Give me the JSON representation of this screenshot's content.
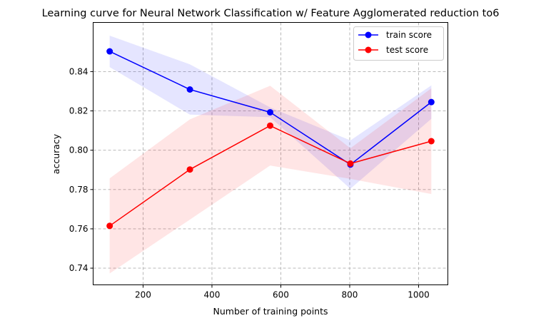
{
  "chart_data": {
    "type": "line",
    "title": "Learning curve for Neural Network Classification w/ Feature Agglomerated reduction to6",
    "xlabel": "Number of training points",
    "ylabel": "accuracy",
    "xlim": [
      55,
      1085
    ],
    "ylim": [
      0.7315,
      0.865
    ],
    "xticks": [
      200,
      400,
      600,
      800,
      1000
    ],
    "yticks": [
      0.74,
      0.76,
      0.78,
      0.8,
      0.82,
      0.84
    ],
    "ytick_labels": [
      "0.74",
      "0.76",
      "0.78",
      "0.80",
      "0.82",
      "0.84"
    ],
    "grid": true,
    "legend_position": "top-right",
    "x": [
      103,
      336,
      569,
      802,
      1037
    ],
    "series": [
      {
        "name": "train score",
        "color": "#0000ff",
        "band_color": "#0000ff",
        "values": [
          0.8503,
          0.8309,
          0.8193,
          0.7927,
          0.8245
        ],
        "upper": [
          0.8583,
          0.8437,
          0.8218,
          0.805,
          0.833
        ],
        "lower": [
          0.8423,
          0.8181,
          0.8168,
          0.7804,
          0.816
        ]
      },
      {
        "name": "test score",
        "color": "#ff0000",
        "band_color": "#ff0000",
        "values": [
          0.7615,
          0.7902,
          0.8125,
          0.7932,
          0.8046
        ],
        "upper": [
          0.7857,
          0.8157,
          0.8328,
          0.801,
          0.8315
        ],
        "lower": [
          0.7373,
          0.7647,
          0.7922,
          0.7854,
          0.7777
        ]
      }
    ]
  }
}
